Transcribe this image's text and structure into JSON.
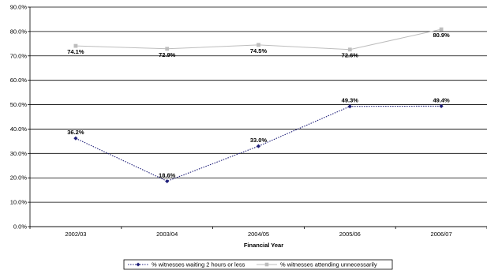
{
  "chart_data": {
    "type": "line",
    "title": "",
    "xlabel": "Financial Year",
    "ylabel": "",
    "categories": [
      "2002/03",
      "2003/04",
      "2004/05",
      "2005/06",
      "2006/07"
    ],
    "ylim": [
      0,
      90
    ],
    "yticks": [
      0,
      10,
      20,
      30,
      40,
      50,
      60,
      70,
      80,
      90
    ],
    "ytick_labels": [
      "0.0%",
      "10.0%",
      "20.0%",
      "30.0%",
      "40.0%",
      "50.0%",
      "60.0%",
      "70.0%",
      "80.0%",
      "90.0%"
    ],
    "grid": "horizontal",
    "legend_position": "bottom",
    "series": [
      {
        "name": "% witnesses waiting 2 hours or less",
        "values": [
          36.2,
          18.6,
          33.0,
          49.3,
          49.4
        ],
        "labels": [
          "36.2%",
          "18.6%",
          "33.0%",
          "49.3%",
          "49.4%"
        ],
        "color": "#1f1f7a",
        "line_style": "dotted",
        "marker": "diamond"
      },
      {
        "name": "% witnesses attending unnecessarily",
        "values": [
          74.1,
          72.9,
          74.5,
          72.6,
          80.9
        ],
        "labels": [
          "74.1%",
          "72.9%",
          "74.5%",
          "72.6%",
          "80.9%"
        ],
        "color": "#bdbdbd",
        "line_style": "solid",
        "marker": "square"
      }
    ]
  }
}
